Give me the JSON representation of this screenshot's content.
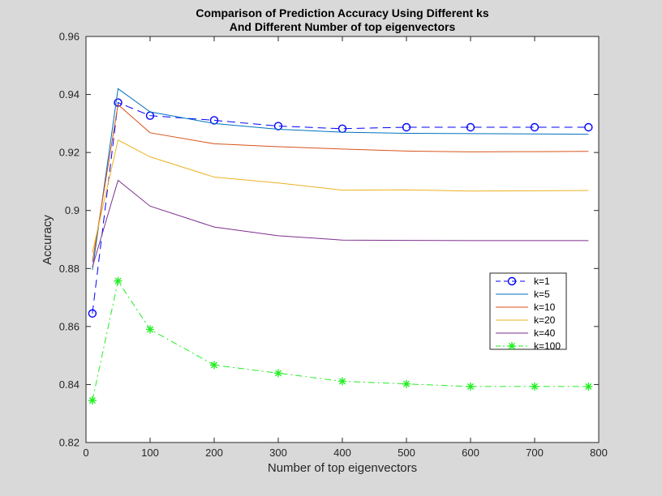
{
  "chart_data": {
    "type": "line",
    "title": [
      "Comparison of Prediction Accuracy Using Different ks",
      "And Different Number of top eigenvectors"
    ],
    "xlabel": "Number of top eigenvectors",
    "ylabel": "Accuracy",
    "xlim": [
      0,
      800
    ],
    "ylim": [
      0.82,
      0.96
    ],
    "xticks": [
      0,
      100,
      200,
      300,
      400,
      500,
      600,
      700,
      800
    ],
    "xtick_labels": [
      "0",
      "100",
      "200",
      "300",
      "400",
      "500",
      "600",
      "700",
      "800"
    ],
    "yticks": [
      0.82,
      0.84,
      0.86,
      0.88,
      0.9,
      0.92,
      0.94,
      0.96
    ],
    "ytick_labels": [
      "0.82",
      "0.84",
      "0.86",
      "0.88",
      "0.9",
      "0.92",
      "0.94",
      "0.96"
    ],
    "grid": false,
    "legend_position": "right",
    "x": [
      10,
      50,
      100,
      200,
      300,
      400,
      500,
      600,
      700,
      784
    ],
    "series": [
      {
        "name": "k=1",
        "color": "#0000ff",
        "dash": "dashed",
        "marker": "circle",
        "values": [
          0.8645,
          0.9372,
          0.9327,
          0.9311,
          0.9291,
          0.9282,
          0.9287,
          0.9287,
          0.9287,
          0.9287
        ]
      },
      {
        "name": "k=5",
        "color": "#0072bd",
        "dash": "solid",
        "marker": "none",
        "values": [
          0.8795,
          0.942,
          0.934,
          0.93,
          0.928,
          0.927,
          0.9266,
          0.9265,
          0.9264,
          0.9263
        ]
      },
      {
        "name": "k=10",
        "color": "#d95319",
        "dash": "solid",
        "marker": "none",
        "values": [
          0.8823,
          0.9365,
          0.9268,
          0.923,
          0.922,
          0.9212,
          0.9205,
          0.9202,
          0.9203,
          0.9204
        ]
      },
      {
        "name": "k=20",
        "color": "#edb120",
        "dash": "solid",
        "marker": "none",
        "values": [
          0.8855,
          0.9243,
          0.9185,
          0.9115,
          0.9095,
          0.907,
          0.9071,
          0.9067,
          0.9068,
          0.9069
        ]
      },
      {
        "name": "k=40",
        "color": "#7e2f8e",
        "dash": "solid",
        "marker": "none",
        "values": [
          0.8805,
          0.9104,
          0.9015,
          0.8943,
          0.8913,
          0.8898,
          0.8897,
          0.8896,
          0.8896,
          0.8896
        ]
      },
      {
        "name": "k=100",
        "color": "#22ee22",
        "dash": "dashdot",
        "marker": "asterisk",
        "values": [
          0.8345,
          0.8757,
          0.859,
          0.8467,
          0.8439,
          0.8411,
          0.8402,
          0.8393,
          0.8393,
          0.8393
        ]
      }
    ]
  }
}
